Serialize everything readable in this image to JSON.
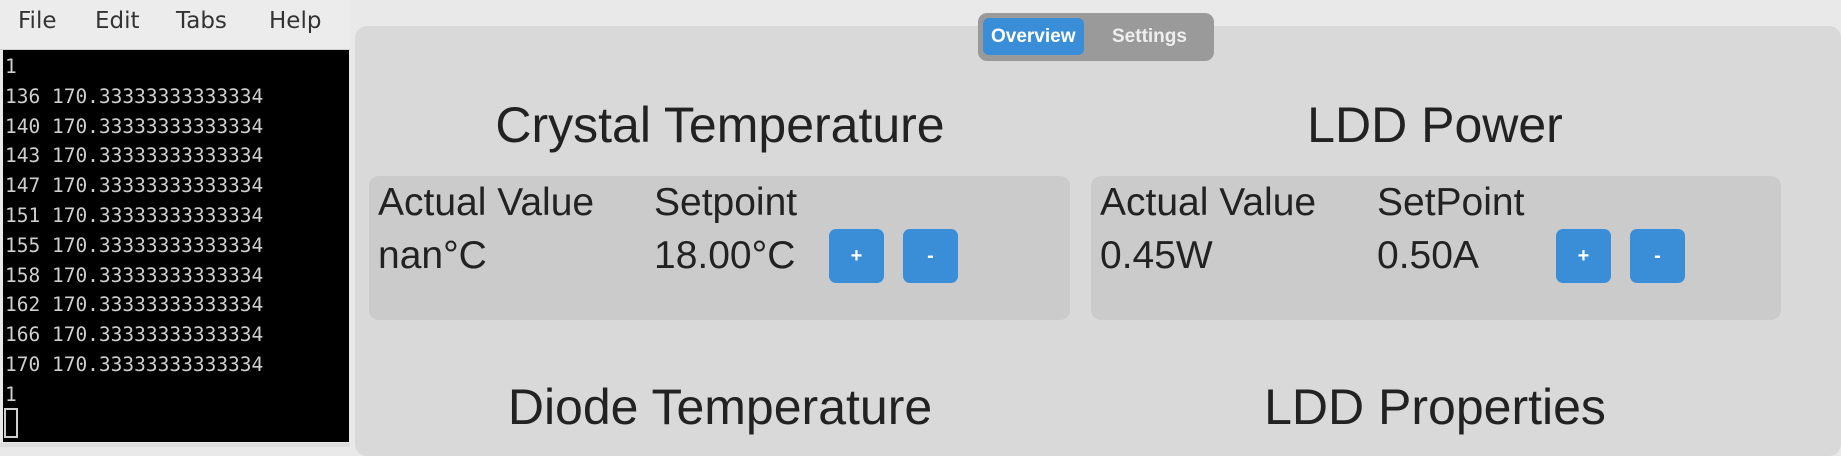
{
  "menu": [
    "File",
    "Edit",
    "Tabs",
    "Help"
  ],
  "terminal": {
    "lines": [
      "1",
      "136 170.33333333333334",
      "140 170.33333333333334",
      "143 170.33333333333334",
      "147 170.33333333333334",
      "151 170.33333333333334",
      "155 170.33333333333334",
      "158 170.33333333333334",
      "162 170.33333333333334",
      "166 170.33333333333334",
      "170 170.33333333333334",
      "1"
    ]
  },
  "tabs": [
    "Overview",
    "Settings"
  ],
  "sections": [
    {
      "title": "Crystal Temperature",
      "labels": [
        "Actual Value",
        "Setpoint"
      ],
      "values": [
        "nan°C",
        "18.00°C"
      ],
      "buttons": [
        "+",
        "-"
      ]
    },
    {
      "title": "LDD Power",
      "labels": [
        "Actual Value",
        "SetPoint"
      ],
      "values": [
        "0.45W",
        "0.50A"
      ],
      "buttons": [
        "+",
        "-"
      ]
    },
    {
      "title": "Diode Temperature"
    },
    {
      "title": "LDD Properties"
    }
  ]
}
